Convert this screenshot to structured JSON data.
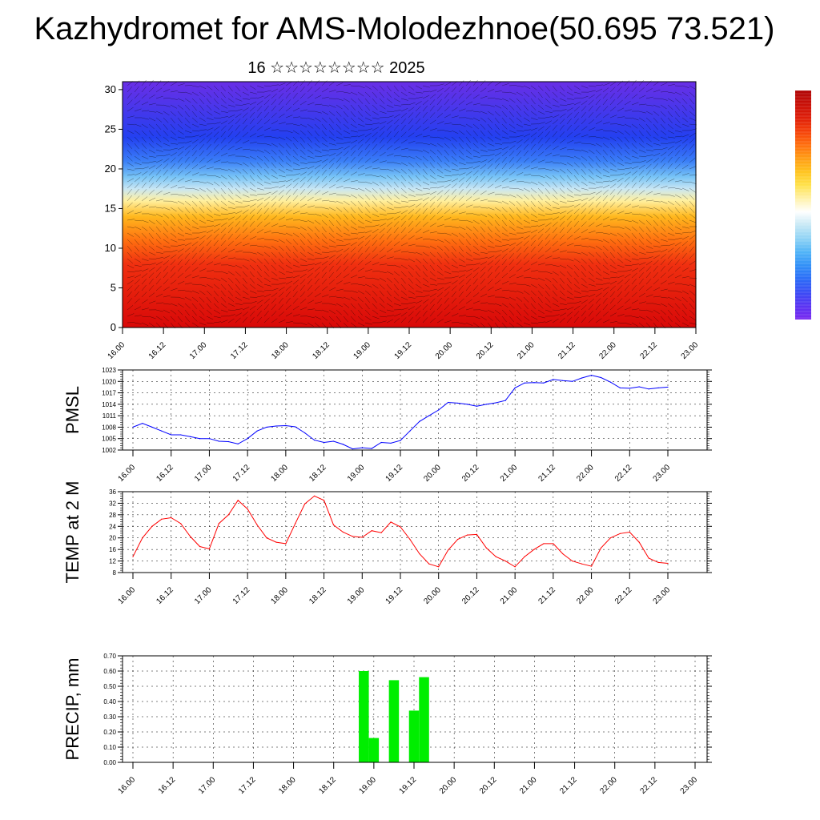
{
  "title": "Kazhydromet for AMS-Molodezhnoe(50.695 73.521)",
  "subtitle": "16 ☆☆☆☆☆☆☆☆ 2025",
  "time_labels": [
    "16.00",
    "16.12",
    "17.00",
    "17.12",
    "18.00",
    "18.12",
    "19.00",
    "19.12",
    "20.00",
    "20.12",
    "21.00",
    "21.12",
    "22.00",
    "22.12",
    "23.00"
  ],
  "colorbar": {
    "colors": [
      "#7a2af0",
      "#5a34f2",
      "#3b4cf5",
      "#2c6cf7",
      "#3290f7",
      "#50b4f7",
      "#8fd3f5",
      "#c6e8f5",
      "#ffffff",
      "#fff1a8",
      "#ffe14a",
      "#ffc21e",
      "#ff9b14",
      "#ff6d0e",
      "#f4400a",
      "#de1f0a",
      "#c81008",
      "#b00808"
    ]
  },
  "chart_data": [
    {
      "type": "heatmap",
      "name": "vertical-cross-section",
      "title": "",
      "xlabel": "",
      "ylabel": "",
      "x_range": [
        16.0,
        23.0
      ],
      "ylim": [
        0,
        31
      ],
      "yticks": [
        0,
        5,
        10,
        15,
        20,
        25,
        30
      ],
      "color_stops_by_height": [
        {
          "y": 0,
          "color": "#d80808"
        },
        {
          "y": 8,
          "color": "#f03010"
        },
        {
          "y": 11,
          "color": "#ff7010"
        },
        {
          "y": 14,
          "color": "#ffb81e"
        },
        {
          "y": 16,
          "color": "#fff0a0"
        },
        {
          "y": 17.5,
          "color": "#c8e6f4"
        },
        {
          "y": 19,
          "color": "#78c4f6"
        },
        {
          "y": 21,
          "color": "#3a7ef7"
        },
        {
          "y": 24,
          "color": "#2340f0"
        },
        {
          "y": 31,
          "color": "#6a2ee6"
        }
      ]
    },
    {
      "type": "line",
      "name": "PMSL",
      "ylabel": "PMSL",
      "ylim": [
        1002,
        1023
      ],
      "yticks": [
        1002,
        1005,
        1008,
        1011,
        1014,
        1017,
        1020,
        1023
      ],
      "color": "#0000ff",
      "x": [
        16.0,
        16.125,
        16.25,
        16.375,
        16.5,
        16.625,
        16.75,
        16.875,
        17.0,
        17.125,
        17.25,
        17.375,
        17.5,
        17.625,
        17.75,
        17.875,
        18.0,
        18.125,
        18.25,
        18.375,
        18.5,
        18.625,
        18.75,
        18.875,
        19.0,
        19.125,
        19.25,
        19.375,
        19.5,
        19.625,
        19.75,
        19.875,
        20.0,
        20.125,
        20.25,
        20.375,
        20.5,
        20.625,
        20.75,
        20.875,
        21.0,
        21.125,
        21.25,
        21.375,
        21.5,
        21.625,
        21.75,
        21.875,
        22.0,
        22.125,
        22.25,
        22.375,
        22.5,
        22.625,
        22.75,
        22.875,
        23.0
      ],
      "values": [
        1008,
        1009,
        1008,
        1007,
        1006,
        1006,
        1005.5,
        1005,
        1005,
        1004.3,
        1004.2,
        1003.6,
        1005,
        1007,
        1008,
        1008.3,
        1008.4,
        1008.1,
        1006.5,
        1004.6,
        1004,
        1004.3,
        1003.5,
        1002.3,
        1002.6,
        1002.4,
        1004,
        1003.8,
        1004.5,
        1007,
        1009.5,
        1011,
        1012.5,
        1014.5,
        1014.3,
        1014,
        1013.5,
        1014,
        1014.4,
        1015,
        1018.3,
        1019.6,
        1019.7,
        1019.6,
        1020.5,
        1020.2,
        1020,
        1020.9,
        1021.6,
        1021,
        1019.8,
        1018.3,
        1018.2,
        1018.6,
        1018,
        1018.3,
        1018.5
      ]
    },
    {
      "type": "line",
      "name": "TEMP at 2 M",
      "ylabel": "TEMP at 2 M",
      "ylim": [
        8,
        36
      ],
      "yticks": [
        8,
        12,
        16,
        20,
        24,
        28,
        32,
        36
      ],
      "color": "#ff0000",
      "x": [
        16.0,
        16.125,
        16.25,
        16.375,
        16.5,
        16.625,
        16.75,
        16.875,
        17.0,
        17.125,
        17.25,
        17.375,
        17.5,
        17.625,
        17.75,
        17.875,
        18.0,
        18.125,
        18.25,
        18.375,
        18.5,
        18.625,
        18.75,
        18.875,
        19.0,
        19.125,
        19.25,
        19.375,
        19.5,
        19.625,
        19.75,
        19.875,
        20.0,
        20.125,
        20.25,
        20.375,
        20.5,
        20.625,
        20.75,
        20.875,
        21.0,
        21.125,
        21.25,
        21.375,
        21.5,
        21.625,
        21.75,
        21.875,
        22.0,
        22.125,
        22.25,
        22.375,
        22.5,
        22.625,
        22.75,
        22.875,
        23.0
      ],
      "values": [
        13.5,
        20,
        24,
        26.5,
        27,
        25,
        20.5,
        17,
        16.2,
        25,
        28,
        33,
        30,
        24.5,
        20,
        18.5,
        18,
        25,
        31.8,
        34.5,
        33,
        24.5,
        22,
        20.5,
        20.2,
        22.5,
        21.8,
        25.5,
        23.8,
        19.5,
        14.5,
        11,
        10,
        15.8,
        19.5,
        21,
        21.2,
        16.5,
        13.5,
        12,
        10,
        13.5,
        16,
        18,
        18,
        14.5,
        12,
        11,
        10.2,
        16.5,
        20,
        21.5,
        22,
        18.5,
        13,
        11.5,
        11.2
      ]
    },
    {
      "type": "bar",
      "name": "PRECIP, mm",
      "ylabel": "PRECIP, mm",
      "ylim": [
        0,
        0.7
      ],
      "yticks": [
        0.0,
        0.1,
        0.2,
        0.3,
        0.4,
        0.5,
        0.6,
        0.7
      ],
      "ytick_labels": [
        "0.00",
        "0.10",
        "0.20",
        "0.30",
        "0.40",
        "0.50",
        "0.60",
        "0.70"
      ],
      "color": "#00ee00",
      "x": [
        18.875,
        19.0,
        19.25,
        19.5,
        19.625
      ],
      "values": [
        0.6,
        0.16,
        0.54,
        0.34,
        0.56
      ]
    }
  ]
}
